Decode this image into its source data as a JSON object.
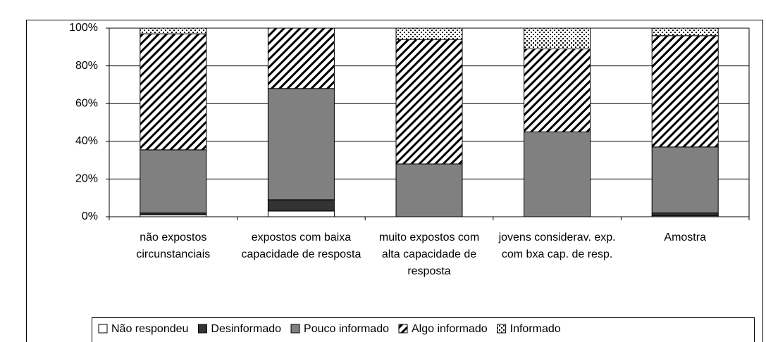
{
  "chart_data": {
    "type": "bar",
    "stacked": true,
    "categories": [
      "não expostos circunstanciais",
      "expostos com baixa capacidade de resposta",
      "muito expostos com alta capacidade de resposta",
      "jovens considerav. exp. com bxa cap. de resp.",
      "Amostra"
    ],
    "series": [
      {
        "name": "Não respondeu",
        "color": "#ffffff",
        "values": [
          1,
          3,
          0,
          0,
          0.5
        ]
      },
      {
        "name": "Desinformado",
        "color": "#333333",
        "values": [
          1,
          6,
          0,
          0,
          1.5
        ]
      },
      {
        "name": "Pouco informado",
        "color": "#808080",
        "values": [
          33.5,
          59,
          28,
          45,
          35
        ]
      },
      {
        "name": "Algo informado",
        "color": "#000000",
        "pattern": "hatch",
        "values": [
          61.5,
          32,
          66,
          44,
          59
        ]
      },
      {
        "name": "Informado",
        "color": "#000000",
        "pattern": "dots",
        "values": [
          3,
          0,
          6,
          11,
          4
        ]
      }
    ],
    "ylim": [
      0,
      100
    ],
    "yticks": [
      {
        "value": 0,
        "label": "0%"
      },
      {
        "value": 20,
        "label": "20%"
      },
      {
        "value": 40,
        "label": "40%"
      },
      {
        "value": 60,
        "label": "60%"
      },
      {
        "value": 80,
        "label": "80%"
      },
      {
        "value": 100,
        "label": "100%"
      }
    ],
    "grid": true,
    "legend": "bottom"
  }
}
